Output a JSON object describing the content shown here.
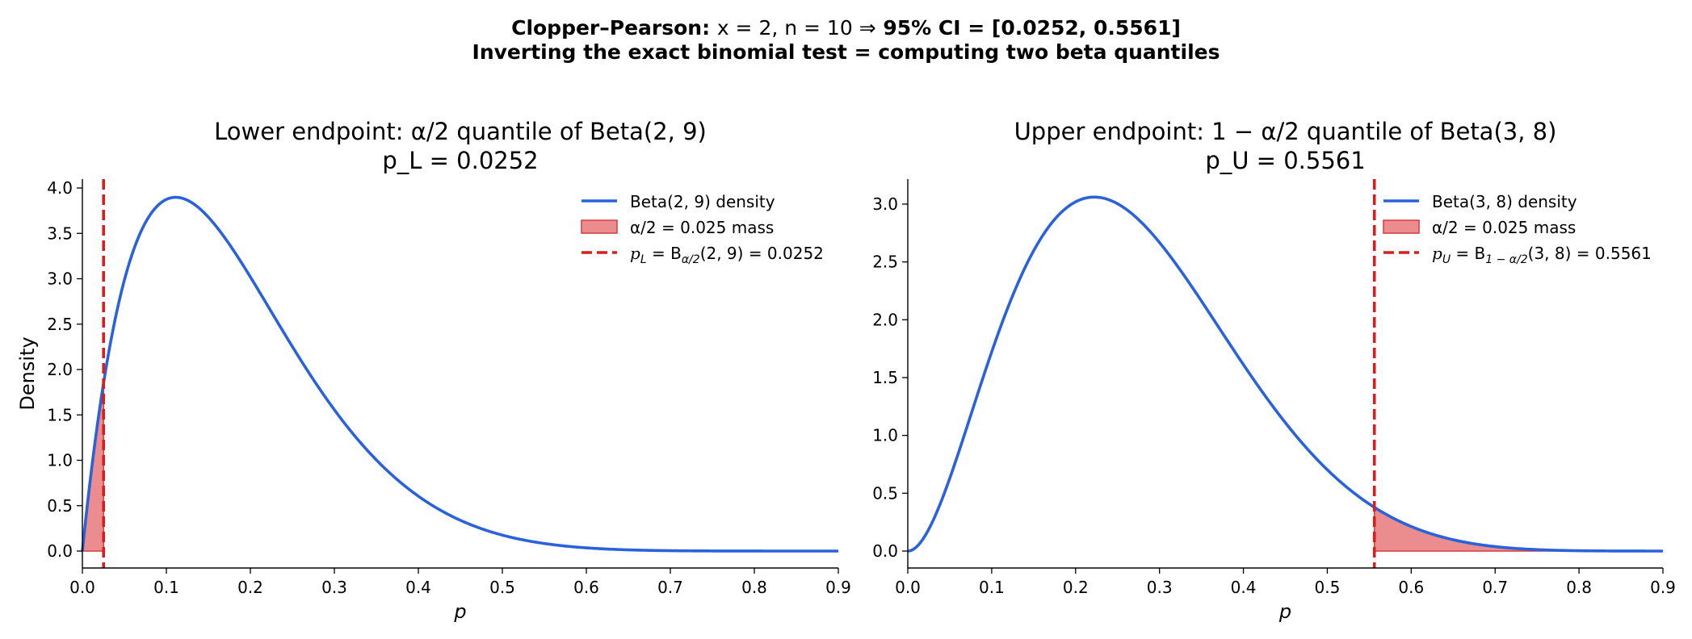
{
  "suptitle": {
    "line1_head": "Clopper–Pearson:",
    "line1_mid": "x = 2, n = 10   ⇒",
    "line1_tail": "95% CI = [0.0252, 0.5561]",
    "line2": "Inverting the exact binomial test = computing two beta quantiles"
  },
  "colors": {
    "curve": "#2a62dc",
    "fill": "#e8797a",
    "fill_edge": "#d43b3b",
    "vline": "#d62020"
  },
  "chart_data": [
    {
      "type": "line",
      "title": "Lower endpoint: α/2 quantile of Beta(2, 9)",
      "subtitle": "p_L = 0.0252",
      "xlabel": "p",
      "ylabel": "Density",
      "xlim": [
        0.0,
        0.9
      ],
      "ylim": [
        -0.195,
        4.09
      ],
      "xticks": [
        "0.0",
        "0.1",
        "0.2",
        "0.3",
        "0.4",
        "0.5",
        "0.6",
        "0.7",
        "0.8",
        "0.9"
      ],
      "yticks": [
        "0.0",
        "0.5",
        "1.0",
        "1.5",
        "2.0",
        "2.5",
        "3.0",
        "3.5",
        "4.0"
      ],
      "distribution": {
        "a": 2,
        "b": 9
      },
      "quantile": 0.0252,
      "shade": "left",
      "series": [
        {
          "name": "Beta(2, 9) density",
          "x": [
            0.0,
            0.02,
            0.05,
            0.08,
            0.111,
            0.15,
            0.2,
            0.25,
            0.3,
            0.35,
            0.4,
            0.45,
            0.5,
            0.55,
            0.6,
            0.65,
            0.7,
            0.75,
            0.8,
            0.85,
            0.9
          ],
          "y": [
            0.0,
            1.68,
            3.15,
            3.81,
            3.87,
            3.49,
            2.68,
            1.88,
            1.21,
            0.73,
            0.4,
            0.21,
            0.098,
            0.042,
            0.017,
            0.006,
            0.002,
            0.0005,
            0.0001,
            0.0,
            0.0
          ]
        }
      ],
      "legend": {
        "placement": "upper right",
        "line": "Beta(2, 9) density",
        "mass": "α/2 = 0.025 mass",
        "vline_head": "p",
        "vline_sub": "L",
        "vline_mid": " = B",
        "vline_sub2": "α/2",
        "vline_tail": "(2, 9) = 0.0252"
      }
    },
    {
      "type": "line",
      "title": "Upper endpoint: 1 − α/2 quantile of Beta(3, 8)",
      "subtitle": "p_U = 0.5561",
      "xlabel": "p",
      "ylabel": "",
      "xlim": [
        0.0,
        0.9
      ],
      "ylim": [
        -0.153,
        3.21
      ],
      "xticks": [
        "0.0",
        "0.1",
        "0.2",
        "0.3",
        "0.4",
        "0.5",
        "0.6",
        "0.7",
        "0.8",
        "0.9"
      ],
      "yticks": [
        "0.0",
        "0.5",
        "1.0",
        "1.5",
        "2.0",
        "2.5",
        "3.0"
      ],
      "distribution": {
        "a": 3,
        "b": 8
      },
      "quantile": 0.5561,
      "shade": "right",
      "series": [
        {
          "name": "Beta(3, 8) density",
          "x": [
            0.0,
            0.05,
            0.1,
            0.15,
            0.222,
            0.25,
            0.3,
            0.35,
            0.4,
            0.45,
            0.5,
            0.556,
            0.6,
            0.65,
            0.7,
            0.75,
            0.8,
            0.85,
            0.9
          ],
          "y": [
            0.0,
            0.7,
            1.94,
            2.73,
            3.06,
            3.02,
            2.67,
            2.18,
            1.63,
            1.12,
            0.7,
            0.37,
            0.21,
            0.1,
            0.044,
            0.016,
            0.005,
            0.001,
            0.0
          ]
        }
      ],
      "legend": {
        "placement": "upper right",
        "line": "Beta(3, 8) density",
        "mass": "α/2 = 0.025 mass",
        "vline_head": "p",
        "vline_sub": "U",
        "vline_mid": " = B",
        "vline_sub2": "1 − α/2",
        "vline_tail": "(3, 8) = 0.5561"
      }
    }
  ]
}
